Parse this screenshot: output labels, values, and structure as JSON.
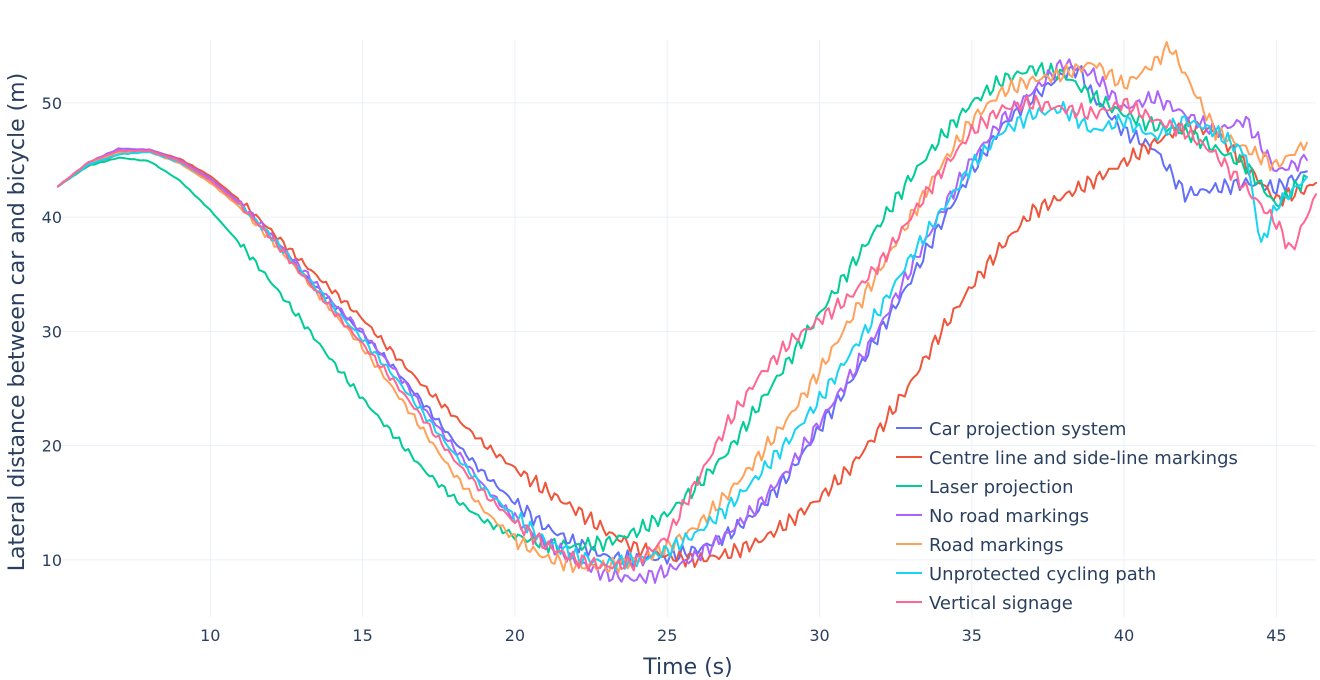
{
  "chart_data": {
    "type": "line",
    "title": "",
    "xlabel": "Time (s)",
    "ylabel": "Lateral distance between car and bicycle (m)",
    "xlim": [
      5,
      46.3
    ],
    "ylim": [
      5,
      55.5
    ],
    "x_ticks": [
      10,
      15,
      20,
      25,
      30,
      35,
      40,
      45
    ],
    "y_ticks": [
      10,
      20,
      30,
      40,
      50
    ],
    "grid": true,
    "legend_position": "bottom-right",
    "series": [
      {
        "name": "Car projection system",
        "color": "#636efa",
        "x": [
          5,
          6,
          7,
          8,
          9,
          10,
          11,
          12,
          13,
          14,
          15,
          16,
          17,
          18,
          19,
          20,
          21,
          22,
          23,
          24,
          25,
          26,
          27,
          28,
          29,
          30,
          31,
          32,
          33,
          34,
          35,
          36,
          37,
          38,
          38.5,
          39,
          40,
          41,
          42,
          43,
          44,
          45,
          46
        ],
        "y": [
          42.7,
          44.6,
          45.8,
          45.9,
          45.0,
          43.3,
          41.0,
          38.2,
          35.2,
          32.4,
          29.8,
          26.9,
          23.7,
          20.4,
          17.5,
          15.0,
          12.9,
          11.4,
          10.3,
          10.0,
          10.2,
          10.9,
          12.2,
          14.3,
          17.5,
          21.5,
          25.5,
          30.0,
          34.5,
          39.5,
          44.0,
          48.0,
          50.5,
          52.5,
          53.0,
          50.5,
          47.5,
          46.0,
          42.0,
          42.5,
          43.0,
          42.5,
          44.0
        ]
      },
      {
        "name": "Centre line and side-line markings",
        "color": "#ef553b",
        "x": [
          5,
          6,
          7,
          8,
          9,
          10,
          11,
          12,
          13,
          14,
          15,
          16,
          17,
          18,
          19,
          20,
          21,
          22,
          23,
          24,
          25,
          26,
          27,
          28,
          29,
          30,
          31,
          32,
          33,
          34,
          35,
          36,
          37,
          38,
          39,
          40,
          41,
          42,
          43,
          44,
          45,
          46,
          46.3
        ],
        "y": [
          42.7,
          44.5,
          45.5,
          45.9,
          45.1,
          43.6,
          41.4,
          38.8,
          36.1,
          33.6,
          31.1,
          28.1,
          25.2,
          22.6,
          20.1,
          18.0,
          16.1,
          14.4,
          12.5,
          11.0,
          10.3,
          10.0,
          10.5,
          11.6,
          13.3,
          15.4,
          18.0,
          21.5,
          25.5,
          30.0,
          34.0,
          37.5,
          40.5,
          41.8,
          43.2,
          44.8,
          46.5,
          48.0,
          47.5,
          44.5,
          41.5,
          42.5,
          43.0
        ]
      },
      {
        "name": "Laser projection",
        "color": "#00cc96",
        "x": [
          5,
          6,
          7,
          8,
          9,
          10,
          11,
          12,
          13,
          14,
          15,
          16,
          17,
          18,
          19,
          20,
          21,
          22,
          23,
          24,
          25,
          26,
          27,
          28,
          29,
          30,
          31,
          32,
          33,
          34,
          35,
          36,
          37,
          38,
          39,
          40,
          41,
          42,
          43,
          44,
          45,
          46
        ],
        "y": [
          42.7,
          44.5,
          45.2,
          44.9,
          43.2,
          40.6,
          37.6,
          34.3,
          30.9,
          27.4,
          24.1,
          21.0,
          17.9,
          15.4,
          13.4,
          12.1,
          11.4,
          11.2,
          11.5,
          12.5,
          14.0,
          16.5,
          19.5,
          23.5,
          27.5,
          31.5,
          35.5,
          39.5,
          43.5,
          47.0,
          50.0,
          52.0,
          53.0,
          52.5,
          50.5,
          49.0,
          48.0,
          47.5,
          46.0,
          44.5,
          41.0,
          43.5
        ]
      },
      {
        "name": "No road markings",
        "color": "#ab63fa",
        "x": [
          5,
          6,
          7,
          8,
          9,
          10,
          11,
          12,
          13,
          14,
          15,
          16,
          17,
          18,
          19,
          20,
          21,
          22,
          23,
          24,
          25,
          26,
          27,
          28,
          29,
          30,
          31,
          32,
          33,
          34,
          35,
          36,
          37,
          38,
          39,
          40,
          41,
          42,
          43,
          44,
          45,
          46
        ],
        "y": [
          42.7,
          44.8,
          46.0,
          45.9,
          45.0,
          43.4,
          41.2,
          38.4,
          35.5,
          32.6,
          29.9,
          26.8,
          23.3,
          19.8,
          16.4,
          13.6,
          11.5,
          9.9,
          8.7,
          8.3,
          9.0,
          10.4,
          12.3,
          14.8,
          18.0,
          22.0,
          26.0,
          30.5,
          35.5,
          40.5,
          45.0,
          48.5,
          51.0,
          53.5,
          52.5,
          49.5,
          50.5,
          49.0,
          47.5,
          48.5,
          44.0,
          45.0
        ]
      },
      {
        "name": "Road markings",
        "color": "#ffa15a",
        "x": [
          5,
          6,
          7,
          8,
          9,
          10,
          11,
          12,
          13,
          14,
          15,
          16,
          17,
          18,
          19,
          20,
          21,
          22,
          23,
          24,
          25,
          26,
          27,
          28,
          29,
          30,
          31,
          32,
          33,
          34,
          35,
          36,
          37,
          38,
          39,
          40,
          41,
          41.5,
          42,
          43,
          44,
          45,
          46
        ],
        "y": [
          42.7,
          44.7,
          45.7,
          45.7,
          44.7,
          43.0,
          40.8,
          38.0,
          35.0,
          31.8,
          28.6,
          25.0,
          21.3,
          17.5,
          14.3,
          11.8,
          10.2,
          9.5,
          9.4,
          9.9,
          11.1,
          13.0,
          15.8,
          19.0,
          22.5,
          26.5,
          31.0,
          35.5,
          40.0,
          44.5,
          48.5,
          51.0,
          52.0,
          52.5,
          53.5,
          51.5,
          53.5,
          55.0,
          52.5,
          47.5,
          46.0,
          44.5,
          46.5
        ]
      },
      {
        "name": "Unprotected cycling path",
        "color": "#19d3f3",
        "x": [
          5,
          6,
          7,
          8,
          9,
          10,
          11,
          12,
          13,
          14,
          15,
          16,
          17,
          18,
          19,
          20,
          21,
          22,
          23,
          24,
          25,
          26,
          27,
          28,
          29,
          30,
          31,
          32,
          33,
          34,
          35,
          36,
          37,
          38,
          39,
          40,
          41,
          42,
          43,
          44,
          44.5,
          45,
          46
        ],
        "y": [
          42.7,
          44.6,
          45.5,
          45.7,
          44.8,
          43.2,
          41.0,
          38.3,
          35.2,
          32.2,
          29.3,
          26.2,
          22.8,
          19.3,
          16.2,
          13.8,
          11.7,
          10.3,
          9.7,
          9.9,
          10.8,
          12.4,
          14.6,
          17.4,
          20.5,
          24.0,
          28.0,
          32.0,
          36.5,
          40.5,
          44.5,
          47.5,
          49.0,
          49.5,
          47.5,
          48.5,
          47.0,
          48.5,
          47.5,
          45.5,
          37.5,
          41.0,
          43.5
        ]
      },
      {
        "name": "Vertical signage",
        "color": "#ff6692",
        "x": [
          5,
          6,
          7,
          8,
          9,
          10,
          11,
          12,
          13,
          14,
          15,
          16,
          17,
          18,
          19,
          20,
          21,
          22,
          23,
          24,
          25,
          26,
          27,
          28,
          29,
          30,
          31,
          32,
          33,
          34,
          35,
          36,
          37,
          38,
          39,
          40,
          41,
          42,
          43,
          44,
          45,
          45.5,
          46.3
        ],
        "y": [
          42.7,
          44.8,
          45.8,
          45.8,
          44.9,
          43.2,
          41.0,
          38.2,
          35.0,
          31.9,
          28.9,
          25.7,
          22.3,
          18.8,
          15.8,
          13.3,
          11.3,
          10.0,
          9.4,
          9.8,
          12.0,
          17.0,
          22.0,
          26.0,
          29.0,
          31.0,
          33.0,
          36.0,
          40.0,
          44.0,
          47.5,
          49.5,
          50.0,
          49.5,
          49.0,
          50.0,
          48.5,
          47.5,
          45.5,
          42.5,
          39.5,
          37.0,
          42.0
        ]
      }
    ]
  }
}
